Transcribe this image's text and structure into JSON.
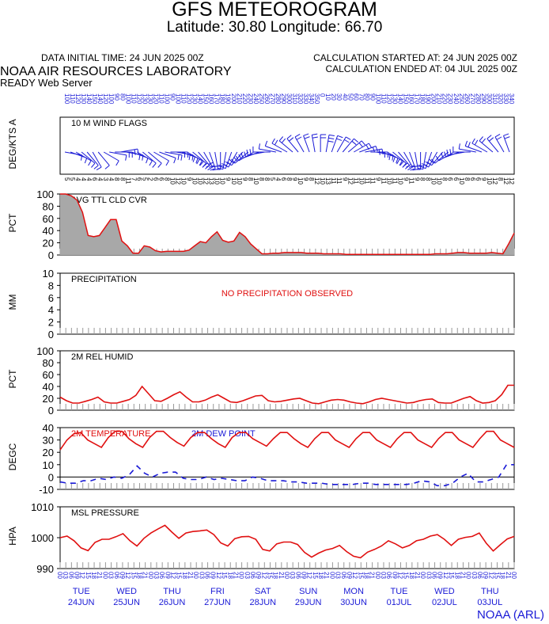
{
  "header": {
    "title": "GFS METEOROGRAM",
    "subtitle": "Latitude: 30.80 Longitude:  66.70",
    "initial_time": "DATA INITIAL TIME: 24 JUN 2025 00Z",
    "calc_started": "CALCULATION STARTED AT: 24 JUN 2025 00Z",
    "calc_ended": "CALCULATION ENDED AT: 04 JUL 2025 00Z",
    "lab": "NOAA AIR RESOURCES LABORATORY",
    "server": "READY Web Server",
    "footer": "NOAA (ARL)"
  },
  "colors": {
    "red": "#e01010",
    "blue": "#1a1ad6",
    "gray": "#a8a8a8"
  },
  "chart_data": [
    {
      "type": "wind_barbs",
      "title": "10 M  WIND FLAGS",
      "ylabel": "DEG/KTS  A",
      "direction_deg": [
        100,
        110,
        120,
        130,
        140,
        150,
        140,
        120,
        100,
        90,
        80,
        100,
        110,
        120,
        130,
        130,
        120,
        110,
        100,
        90,
        100,
        110,
        120,
        130,
        140,
        150,
        160,
        170,
        180,
        190,
        200,
        210,
        220,
        230,
        240,
        250,
        260,
        270,
        280,
        290,
        300,
        310,
        320,
        330,
        340,
        350,
        0,
        10,
        20,
        30,
        40,
        50,
        60,
        70,
        80,
        90,
        100,
        110,
        120,
        130,
        140,
        150,
        160,
        170,
        180,
        190,
        200,
        210,
        220,
        230,
        240,
        250,
        260,
        270,
        280,
        290,
        300,
        310,
        320,
        330,
        340
      ],
      "speed_kts": [
        5,
        5,
        4,
        4,
        4,
        6,
        4,
        3,
        4,
        8,
        8,
        11,
        7,
        6,
        5,
        2,
        6,
        6,
        8,
        10,
        12,
        10,
        9,
        10,
        10,
        12,
        13,
        10,
        10,
        9,
        10,
        10,
        9,
        8,
        10,
        8,
        8,
        5,
        4,
        6,
        8,
        9,
        10,
        9,
        8,
        12,
        10,
        13,
        11,
        11,
        9,
        12,
        11,
        10,
        11,
        11,
        9,
        11,
        10,
        11,
        10,
        9,
        11,
        9,
        8,
        8,
        10,
        10,
        8,
        6,
        6,
        10,
        8,
        6,
        6,
        9,
        10,
        12,
        8,
        12,
        12
      ]
    },
    {
      "type": "area",
      "title": "AVG TTL CLD CVR",
      "ylabel": "PCT",
      "ylim": [
        0,
        100
      ],
      "yticks": [
        0,
        20,
        40,
        60,
        80,
        100
      ],
      "values": [
        100,
        100,
        97,
        90,
        70,
        32,
        30,
        32,
        45,
        58,
        58,
        23,
        15,
        3,
        3,
        15,
        13,
        7,
        5,
        6,
        6,
        6,
        6,
        8,
        15,
        22,
        20,
        30,
        38,
        24,
        21,
        23,
        37,
        30,
        18,
        10,
        2,
        2,
        3,
        3,
        4,
        4,
        4,
        4,
        3,
        3,
        3,
        2,
        2,
        2,
        2,
        1,
        1,
        1,
        1,
        1,
        1,
        1,
        1,
        1,
        1,
        1,
        1,
        1,
        1,
        1,
        1,
        2,
        2,
        2,
        3,
        4,
        4,
        3,
        3,
        3,
        3,
        4,
        3,
        2,
        18,
        36
      ]
    },
    {
      "type": "line",
      "title": "PRECIPITATION",
      "ylabel": "MM",
      "ylim": [
        0,
        10
      ],
      "yticks": [
        0,
        2,
        4,
        6,
        8,
        10
      ],
      "message": "NO PRECIPITATION OBSERVED",
      "values": []
    },
    {
      "type": "line",
      "title": "2M REL HUMID",
      "ylabel": "PCT",
      "ylim": [
        0,
        100
      ],
      "yticks": [
        0,
        20,
        40,
        60,
        80,
        100
      ],
      "values": [
        22,
        16,
        12,
        12,
        15,
        18,
        22,
        14,
        12,
        12,
        15,
        18,
        25,
        40,
        28,
        16,
        15,
        20,
        26,
        31,
        22,
        14,
        14,
        17,
        22,
        26,
        20,
        14,
        13,
        16,
        20,
        24,
        25,
        16,
        14,
        15,
        17,
        19,
        20,
        16,
        12,
        11,
        14,
        17,
        18,
        17,
        14,
        12,
        11,
        14,
        18,
        20,
        18,
        16,
        14,
        12,
        13,
        16,
        18,
        19,
        13,
        12,
        12,
        16,
        20,
        23,
        16,
        12,
        13,
        16,
        26,
        42,
        42
      ]
    },
    {
      "type": "line",
      "title": "2M TEMPERATURE",
      "title2": "2M   DEW POINT",
      "ylabel": "DEGC",
      "ylim": [
        -10,
        40
      ],
      "yticks": [
        -10,
        0,
        10,
        20,
        30,
        40
      ],
      "series": [
        {
          "name": "2M TEMPERATURE",
          "color": "red",
          "values": [
            22,
            30,
            35,
            36,
            30,
            27,
            24,
            32,
            37,
            37,
            31,
            27,
            24,
            32,
            37,
            37,
            32,
            28,
            25,
            32,
            36,
            36,
            31,
            27,
            24,
            32,
            36,
            36,
            31,
            28,
            25,
            31,
            36,
            36,
            31,
            27,
            24,
            31,
            36,
            36,
            30,
            27,
            24,
            31,
            36,
            36,
            30,
            27,
            24,
            31,
            36,
            36,
            30,
            27,
            24,
            31,
            36,
            36,
            30,
            27,
            24,
            31,
            37,
            37,
            30,
            27,
            24
          ]
        },
        {
          "name": "2M   DEW POINT",
          "color": "blue",
          "style": "dashed",
          "values": [
            -4,
            -5,
            -5,
            -3,
            -3,
            -1,
            -2,
            0,
            -1,
            2,
            9,
            3,
            0,
            3,
            4,
            4,
            -1,
            -2,
            -2,
            0,
            -2,
            -1,
            -2,
            -3,
            -3,
            0,
            -1,
            -3,
            -3,
            -3,
            -4,
            -4,
            -5,
            -5,
            -5,
            -6,
            -6,
            -6,
            -6,
            -5,
            -5,
            -6,
            -6,
            -6,
            -6,
            -6,
            -5,
            -3,
            -4,
            -7,
            -7,
            -5,
            0,
            3,
            -4,
            -4,
            -2,
            0,
            10,
            10
          ]
        }
      ]
    },
    {
      "type": "line",
      "title": "MSL PRESSURE",
      "ylabel": "HPA",
      "ylim": [
        990,
        1010
      ],
      "yticks": [
        990,
        1000,
        1010
      ],
      "values": [
        1000,
        1000.5,
        999,
        996.7,
        995.8,
        998.5,
        999.5,
        999.5,
        1000.3,
        1001.3,
        999,
        997.3,
        999.8,
        1001.5,
        1002.8,
        1004,
        1001.8,
        999.8,
        1001.5,
        1002,
        1002.2,
        1002.5,
        1001,
        998.3,
        997.3,
        999.7,
        1000.3,
        1000.4,
        999.5,
        996.2,
        995.7,
        998,
        998.6,
        998.6,
        997.8,
        995.2,
        993.7,
        995,
        996,
        996.5,
        997.5,
        995.5,
        994,
        993.5,
        995.3,
        996.2,
        997.3,
        999,
        998,
        996.7,
        997.5,
        999,
        999.5,
        1000.5,
        1001,
        999.5,
        997.5,
        999.5,
        1000.1,
        1000.4,
        1001.5,
        998.2,
        995.7,
        997.7,
        999.6,
        1000.4
      ]
    }
  ],
  "x_axis": {
    "tick_hours": [
      "00",
      "03",
      "06",
      "09",
      "12",
      "15",
      "18",
      "21"
    ],
    "days": [
      {
        "weekday": "TUE",
        "date": "24JUN"
      },
      {
        "weekday": "WED",
        "date": "25JUN"
      },
      {
        "weekday": "THU",
        "date": "26JUN"
      },
      {
        "weekday": "FRI",
        "date": "27JUN"
      },
      {
        "weekday": "SAT",
        "date": "28JUN"
      },
      {
        "weekday": "SUN",
        "date": "29JUN"
      },
      {
        "weekday": "MON",
        "date": "30JUN"
      },
      {
        "weekday": "TUE",
        "date": "01JUL"
      },
      {
        "weekday": "WED",
        "date": "02JUL"
      },
      {
        "weekday": "THU",
        "date": "03JUL"
      }
    ]
  }
}
